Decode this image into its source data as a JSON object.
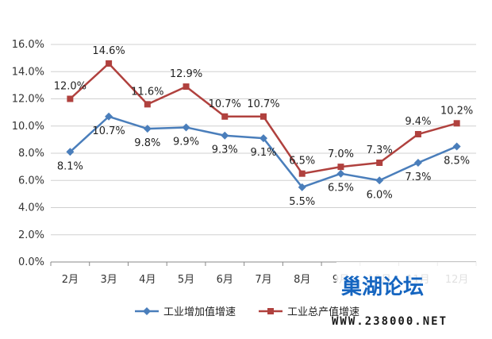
{
  "chart_data": {
    "type": "line",
    "title": "",
    "xlabel": "",
    "ylabel": "",
    "categories": [
      "2月",
      "3月",
      "4月",
      "5月",
      "6月",
      "7月",
      "8月",
      "9月",
      "10月",
      "11月",
      "12月"
    ],
    "series": [
      {
        "name": "工业增加值增速",
        "color": "#4a7ebb",
        "marker": "diamond",
        "values": [
          8.1,
          10.7,
          9.8,
          9.9,
          9.3,
          9.1,
          5.5,
          6.5,
          6.0,
          7.3,
          8.5
        ],
        "labels": [
          "8.1%",
          "10.7%",
          "9.8%",
          "9.9%",
          "9.3%",
          "9.1%",
          "5.5%",
          "6.5%",
          "6.0%",
          "7.3%",
          "8.5%"
        ]
      },
      {
        "name": "工业总产值增速",
        "color": "#b0413e",
        "marker": "square",
        "values": [
          12.0,
          14.6,
          11.6,
          12.9,
          10.7,
          10.7,
          6.5,
          7.0,
          7.3,
          9.4,
          10.2
        ],
        "labels": [
          "12.0%",
          "14.6%",
          "11.6%",
          "12.9%",
          "10.7%",
          "10.7%",
          "6.5%",
          "7.0%",
          "7.3%",
          "9.4%",
          "10.2%"
        ]
      }
    ],
    "ylim": [
      0,
      16
    ],
    "yticks": [
      "0.0%",
      "2.0%",
      "4.0%",
      "6.0%",
      "8.0%",
      "10.0%",
      "12.0%",
      "14.0%",
      "16.0%"
    ],
    "grid": true,
    "legend_position": "bottom"
  },
  "watermark": {
    "text": "巢湖论坛",
    "url": "WWW.238000.NET"
  }
}
